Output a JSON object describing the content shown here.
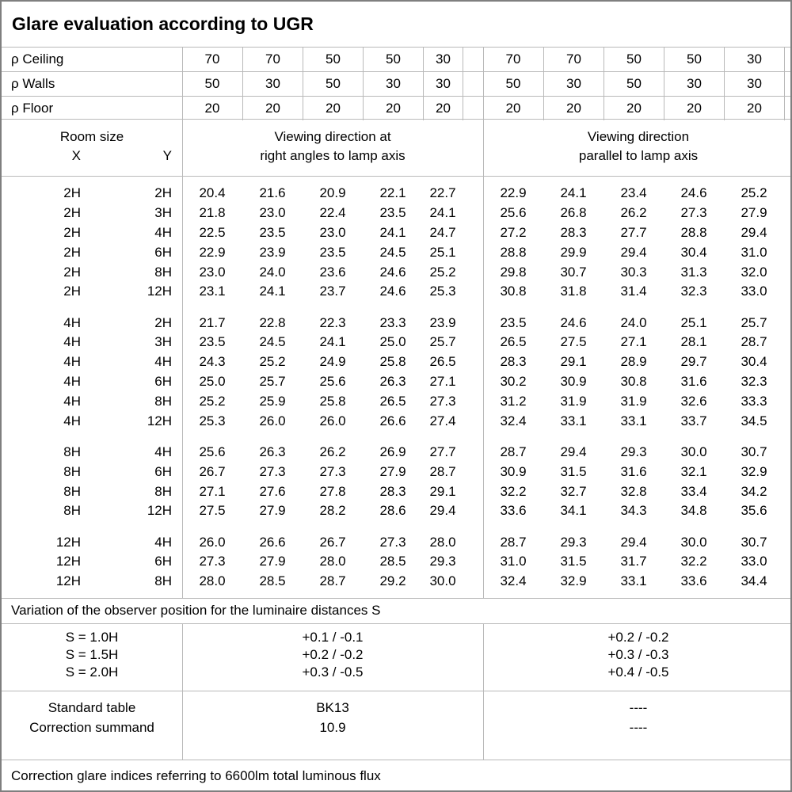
{
  "title": "Glare evaluation according to UGR",
  "reflectance": {
    "rows": [
      {
        "label": "ρ Ceiling",
        "values": [
          "70",
          "70",
          "50",
          "50",
          "30",
          "70",
          "70",
          "50",
          "50",
          "30"
        ]
      },
      {
        "label": "ρ Walls",
        "values": [
          "50",
          "30",
          "50",
          "30",
          "30",
          "50",
          "30",
          "50",
          "30",
          "30"
        ]
      },
      {
        "label": "ρ Floor",
        "values": [
          "20",
          "20",
          "20",
          "20",
          "20",
          "20",
          "20",
          "20",
          "20",
          "20"
        ]
      }
    ]
  },
  "room_header": {
    "room_size": "Room size",
    "x": "X",
    "y": "Y"
  },
  "group_headers": {
    "right_angles": [
      "Viewing direction at",
      "right angles to lamp axis"
    ],
    "parallel": [
      "Viewing direction",
      "parallel to lamp axis"
    ]
  },
  "ugr_groups": [
    {
      "rows": [
        {
          "x": "2H",
          "y": "2H",
          "right_angles": [
            "20.4",
            "21.6",
            "20.9",
            "22.1",
            "22.7"
          ],
          "parallel": [
            "22.9",
            "24.1",
            "23.4",
            "24.6",
            "25.2"
          ]
        },
        {
          "x": "2H",
          "y": "3H",
          "right_angles": [
            "21.8",
            "23.0",
            "22.4",
            "23.5",
            "24.1"
          ],
          "parallel": [
            "25.6",
            "26.8",
            "26.2",
            "27.3",
            "27.9"
          ]
        },
        {
          "x": "2H",
          "y": "4H",
          "right_angles": [
            "22.5",
            "23.5",
            "23.0",
            "24.1",
            "24.7"
          ],
          "parallel": [
            "27.2",
            "28.3",
            "27.7",
            "28.8",
            "29.4"
          ]
        },
        {
          "x": "2H",
          "y": "6H",
          "right_angles": [
            "22.9",
            "23.9",
            "23.5",
            "24.5",
            "25.1"
          ],
          "parallel": [
            "28.8",
            "29.9",
            "29.4",
            "30.4",
            "31.0"
          ]
        },
        {
          "x": "2H",
          "y": "8H",
          "right_angles": [
            "23.0",
            "24.0",
            "23.6",
            "24.6",
            "25.2"
          ],
          "parallel": [
            "29.8",
            "30.7",
            "30.3",
            "31.3",
            "32.0"
          ]
        },
        {
          "x": "2H",
          "y": "12H",
          "right_angles": [
            "23.1",
            "24.1",
            "23.7",
            "24.6",
            "25.3"
          ],
          "parallel": [
            "30.8",
            "31.8",
            "31.4",
            "32.3",
            "33.0"
          ]
        }
      ]
    },
    {
      "rows": [
        {
          "x": "4H",
          "y": "2H",
          "right_angles": [
            "21.7",
            "22.8",
            "22.3",
            "23.3",
            "23.9"
          ],
          "parallel": [
            "23.5",
            "24.6",
            "24.0",
            "25.1",
            "25.7"
          ]
        },
        {
          "x": "4H",
          "y": "3H",
          "right_angles": [
            "23.5",
            "24.5",
            "24.1",
            "25.0",
            "25.7"
          ],
          "parallel": [
            "26.5",
            "27.5",
            "27.1",
            "28.1",
            "28.7"
          ]
        },
        {
          "x": "4H",
          "y": "4H",
          "right_angles": [
            "24.3",
            "25.2",
            "24.9",
            "25.8",
            "26.5"
          ],
          "parallel": [
            "28.3",
            "29.1",
            "28.9",
            "29.7",
            "30.4"
          ]
        },
        {
          "x": "4H",
          "y": "6H",
          "right_angles": [
            "25.0",
            "25.7",
            "25.6",
            "26.3",
            "27.1"
          ],
          "parallel": [
            "30.2",
            "30.9",
            "30.8",
            "31.6",
            "32.3"
          ]
        },
        {
          "x": "4H",
          "y": "8H",
          "right_angles": [
            "25.2",
            "25.9",
            "25.8",
            "26.5",
            "27.3"
          ],
          "parallel": [
            "31.2",
            "31.9",
            "31.9",
            "32.6",
            "33.3"
          ]
        },
        {
          "x": "4H",
          "y": "12H",
          "right_angles": [
            "25.3",
            "26.0",
            "26.0",
            "26.6",
            "27.4"
          ],
          "parallel": [
            "32.4",
            "33.1",
            "33.1",
            "33.7",
            "34.5"
          ]
        }
      ]
    },
    {
      "rows": [
        {
          "x": "8H",
          "y": "4H",
          "right_angles": [
            "25.6",
            "26.3",
            "26.2",
            "26.9",
            "27.7"
          ],
          "parallel": [
            "28.7",
            "29.4",
            "29.3",
            "30.0",
            "30.7"
          ]
        },
        {
          "x": "8H",
          "y": "6H",
          "right_angles": [
            "26.7",
            "27.3",
            "27.3",
            "27.9",
            "28.7"
          ],
          "parallel": [
            "30.9",
            "31.5",
            "31.6",
            "32.1",
            "32.9"
          ]
        },
        {
          "x": "8H",
          "y": "8H",
          "right_angles": [
            "27.1",
            "27.6",
            "27.8",
            "28.3",
            "29.1"
          ],
          "parallel": [
            "32.2",
            "32.7",
            "32.8",
            "33.4",
            "34.2"
          ]
        },
        {
          "x": "8H",
          "y": "12H",
          "right_angles": [
            "27.5",
            "27.9",
            "28.2",
            "28.6",
            "29.4"
          ],
          "parallel": [
            "33.6",
            "34.1",
            "34.3",
            "34.8",
            "35.6"
          ]
        }
      ]
    },
    {
      "rows": [
        {
          "x": "12H",
          "y": "4H",
          "right_angles": [
            "26.0",
            "26.6",
            "26.7",
            "27.3",
            "28.0"
          ],
          "parallel": [
            "28.7",
            "29.3",
            "29.4",
            "30.0",
            "30.7"
          ]
        },
        {
          "x": "12H",
          "y": "6H",
          "right_angles": [
            "27.3",
            "27.9",
            "28.0",
            "28.5",
            "29.3"
          ],
          "parallel": [
            "31.0",
            "31.5",
            "31.7",
            "32.2",
            "33.0"
          ]
        },
        {
          "x": "12H",
          "y": "8H",
          "right_angles": [
            "28.0",
            "28.5",
            "28.7",
            "29.2",
            "30.0"
          ],
          "parallel": [
            "32.4",
            "32.9",
            "33.1",
            "33.6",
            "34.4"
          ]
        }
      ]
    }
  ],
  "variation_note": "Variation of the observer position for the luminaire distances S",
  "spacing_section": {
    "rows": [
      {
        "label": "S = 1.0H",
        "right_angles": "+0.1 / -0.1",
        "parallel": "+0.2 / -0.2"
      },
      {
        "label": "S = 1.5H",
        "right_angles": "+0.2 / -0.2",
        "parallel": "+0.3 / -0.3"
      },
      {
        "label": "S = 2.0H",
        "right_angles": "+0.3 / -0.5",
        "parallel": "+0.4 / -0.5"
      }
    ]
  },
  "summary_section": {
    "rows": [
      {
        "label": "Standard table",
        "right_angles": "BK13",
        "parallel": "----"
      },
      {
        "label": "Correction summand",
        "right_angles": "10.9",
        "parallel": "----"
      }
    ]
  },
  "footer_note": "Correction glare indices referring to 6600lm total luminous flux",
  "colors": {
    "grid_line": "#b9b9b9",
    "outer_border": "#7f7f7f",
    "text": "#000000",
    "background": "#ffffff"
  }
}
